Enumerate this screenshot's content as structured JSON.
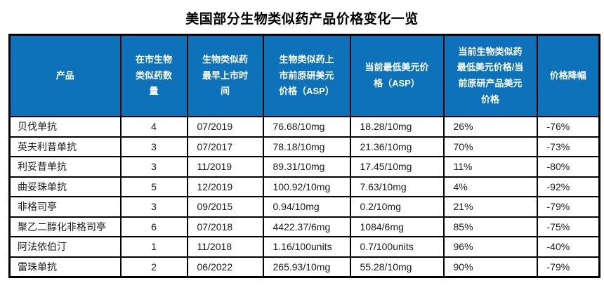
{
  "colors": {
    "header_bg": "#0d72ba",
    "header_text": "#ffffff",
    "border": "#000000",
    "title_text": "#000000"
  },
  "chart_data": {
    "type": "table",
    "title": "美国部分生物类似药产品价格变化一览",
    "columns": [
      "产品",
      "在市生物类似药数量",
      "生物类似药最早上市时间",
      "生物类似药上市前原研美元价格（ASP）",
      "当前最低美元价格（ASP）",
      "当前生物类似药最低美元价格/当前原研产品美元价格",
      "价格降幅"
    ],
    "rows": [
      [
        "贝伐单抗",
        "4",
        "07/2019",
        "76.68/10mg",
        "18.28/10mg",
        "26%",
        "-76%"
      ],
      [
        "英夫利昔单抗",
        "3",
        "07/2017",
        "78.18/10mg",
        "21.36/10mg",
        "70%",
        "-73%"
      ],
      [
        "利妥昔单抗",
        "3",
        "11/2019",
        "89.31/10mg",
        "17.45/10mg",
        "11%",
        "-80%"
      ],
      [
        "曲妥珠单抗",
        "5",
        "12/2019",
        "100.92/10mg",
        "7.63/10mg",
        "4%",
        "-92%"
      ],
      [
        "非格司亭",
        "3",
        "09/2015",
        "0.94/10mg",
        "0.2/10mg",
        "21%",
        "-79%"
      ],
      [
        "聚乙二醇化非格司亭",
        "6",
        "07/2018",
        "4422.37/6mg",
        "1084/6mg",
        "85%",
        "-75%"
      ],
      [
        "阿法依伯汀",
        "1",
        "11/2018",
        "1.16/100units",
        "0.7/100units",
        "96%",
        "-40%"
      ],
      [
        "雷珠单抗",
        "2",
        "06/2022",
        "265.93/10mg",
        "55.28/10mg",
        "90%",
        "-79%"
      ]
    ]
  }
}
